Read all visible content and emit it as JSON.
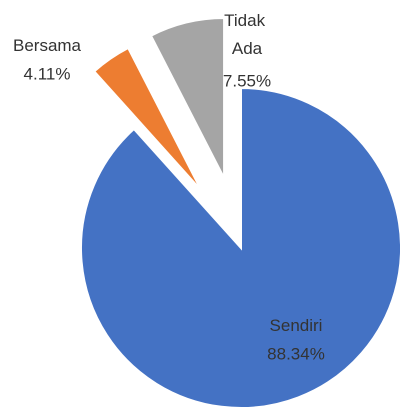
{
  "chart_data": {
    "type": "pie",
    "categories": [
      "Sendiri",
      "Bersama",
      "Tidak Ada"
    ],
    "values": [
      88.34,
      4.11,
      7.55
    ],
    "value_labels": [
      "88.34%",
      "4.11%",
      "7.55%"
    ],
    "colors": [
      "#4472c4",
      "#ed7d31",
      "#a5a5a5"
    ]
  }
}
